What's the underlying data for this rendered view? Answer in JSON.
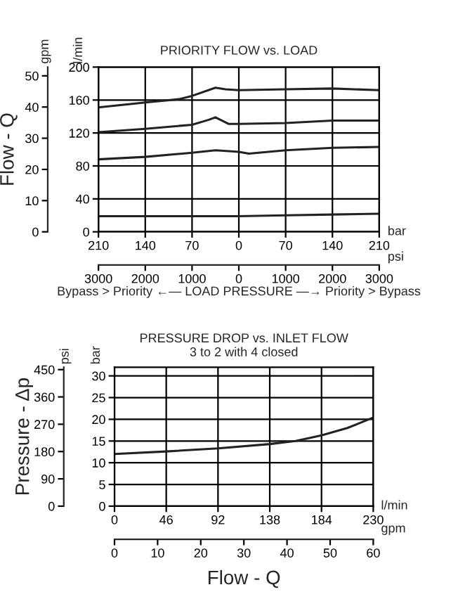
{
  "chart_data": [
    {
      "type": "line",
      "title": "PRIORITY FLOW vs. LOAD",
      "xlabel": "bar",
      "x2label": "psi",
      "ylabel": "l/min",
      "y2label": "gpm",
      "annotations": [
        "Flow - Q",
        "Bypass > Priority ←— LOAD PRESSURE —→ Priority > Bypass"
      ],
      "xlim": [
        -210,
        210
      ],
      "xticks": [
        {
          "value": -210,
          "label": "210"
        },
        {
          "value": -140,
          "label": "140"
        },
        {
          "value": -70,
          "label": "70"
        },
        0,
        70,
        140,
        210
      ],
      "x2lim": [
        -3000,
        3000
      ],
      "x2ticks": [
        {
          "value": -3000,
          "label": "3000"
        },
        {
          "value": -2000,
          "label": "2000"
        },
        {
          "value": -1000,
          "label": "1000"
        },
        0,
        1000,
        2000,
        3000
      ],
      "ylim": [
        0,
        200
      ],
      "yticks": [
        0,
        40,
        80,
        120,
        160,
        200
      ],
      "y2lim": [
        0,
        52.8
      ],
      "y2ticks": [
        0,
        10,
        20,
        30,
        40,
        50
      ],
      "grid": true,
      "line_style": "solid",
      "marker": "none",
      "series": [
        {
          "color": "#222222",
          "x": [
            -210,
            -140,
            -90,
            -70,
            -35,
            -20,
            0,
            70,
            140,
            210
          ],
          "values": [
            151,
            157,
            161,
            165,
            175,
            173,
            172,
            173,
            174,
            172
          ]
        },
        {
          "color": "#222222",
          "x": [
            -210,
            -140,
            -70,
            -45,
            -35,
            -15,
            0,
            70,
            140,
            210
          ],
          "values": [
            121,
            125,
            130,
            136,
            139,
            131,
            131,
            132,
            135,
            135
          ]
        },
        {
          "color": "#222222",
          "x": [
            -210,
            -140,
            -70,
            -35,
            -15,
            0,
            15,
            70,
            140,
            210
          ],
          "values": [
            88,
            91,
            96,
            99,
            98,
            97,
            95,
            99,
            102,
            103
          ]
        },
        {
          "color": "#222222",
          "x": [
            -210,
            0,
            70,
            140,
            210
          ],
          "values": [
            19,
            19,
            20,
            21,
            22
          ]
        }
      ]
    },
    {
      "type": "line",
      "title": "PRESSURE DROP vs. INLET FLOW",
      "subtitle": "3 to 2 with 4 closed",
      "xlabel": "l/min",
      "x2label": "gpm",
      "ylabel": "bar",
      "y2label": "psi",
      "annotations": [
        "Pressure - Δp",
        "Flow - Q"
      ],
      "xlim": [
        0,
        230
      ],
      "xticks": [
        0,
        46,
        92,
        138,
        184,
        230
      ],
      "x2lim": [
        0,
        60
      ],
      "x2ticks": [
        0,
        10,
        20,
        30,
        40,
        50,
        60
      ],
      "ylim": [
        0,
        32
      ],
      "yticks": [
        0,
        5,
        10,
        15,
        20,
        25,
        30
      ],
      "y2lim": [
        0,
        458
      ],
      "y2ticks": [
        0,
        90,
        180,
        270,
        360,
        450
      ],
      "grid": true,
      "line_style": "solid",
      "marker": "none",
      "series": [
        {
          "color": "#222222",
          "x": [
            0,
            46,
            92,
            138,
            161,
            184,
            207,
            230
          ],
          "values": [
            12.0,
            12.6,
            13.3,
            14.3,
            15.0,
            16.3,
            18.0,
            20.4
          ]
        }
      ]
    }
  ]
}
